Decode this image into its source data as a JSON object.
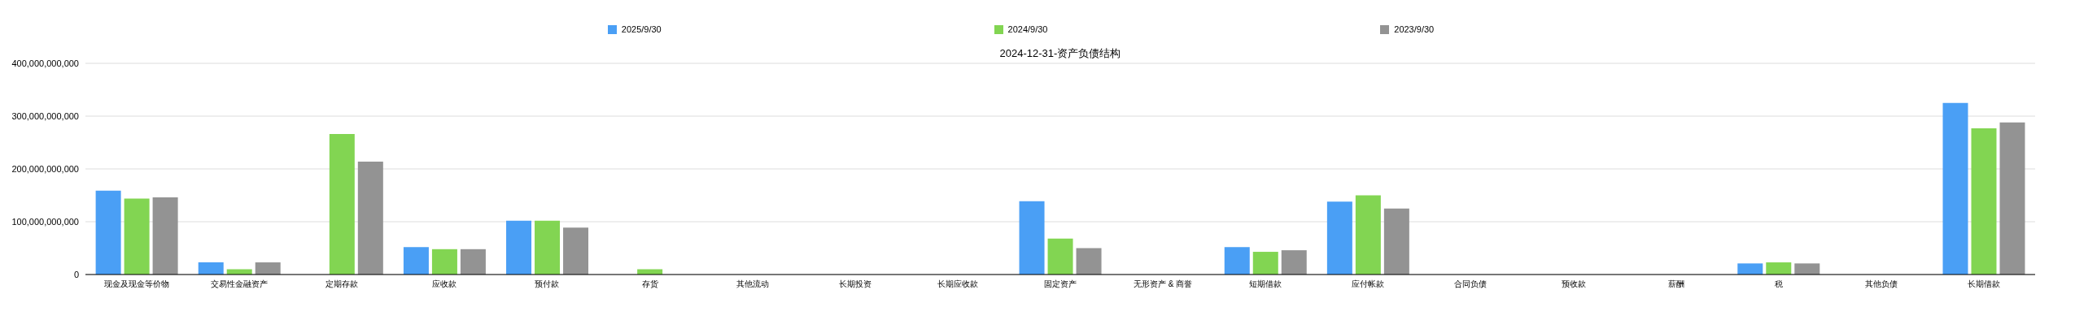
{
  "chart_data": {
    "type": "bar",
    "title": "2024-12-31-资产负债结构",
    "categories": [
      "现金及现金等价物",
      "交易性金融资产",
      "定期存款",
      "应收款",
      "预付款",
      "存货",
      "其他流动",
      "长期投资",
      "长期应收款",
      "固定资产",
      "无形资产 & 商誉",
      "短期借款",
      "应付帐款",
      "合同负债",
      "预收款",
      "薪酬",
      "税",
      "其他负债",
      "长期借款"
    ],
    "series": [
      {
        "name": "2025/9/30",
        "color": "#4a9ff5",
        "values": [
          159000000000,
          23000000000,
          0,
          52000000000,
          102000000000,
          0,
          0,
          0,
          0,
          139000000000,
          0,
          52000000000,
          138000000000,
          0,
          0,
          0,
          21000000000,
          0,
          325000000000
        ]
      },
      {
        "name": "2024/9/30",
        "color": "#82d552",
        "values": [
          144000000000,
          10000000000,
          266000000000,
          48000000000,
          102000000000,
          10000000000,
          0,
          0,
          0,
          68000000000,
          0,
          43000000000,
          150000000000,
          0,
          0,
          0,
          23000000000,
          0,
          277000000000
        ]
      },
      {
        "name": "2023/9/30",
        "color": "#939393",
        "values": [
          146000000000,
          23000000000,
          214000000000,
          48000000000,
          89000000000,
          0,
          0,
          0,
          0,
          50000000000,
          0,
          46000000000,
          125000000000,
          0,
          0,
          0,
          21000000000,
          0,
          288000000000
        ]
      }
    ],
    "ylim": [
      0,
      400000000000
    ],
    "yticks": [
      0,
      {
        "value": 100000000000,
        "label": "100,000,000,000"
      },
      {
        "value": 200000000000,
        "label": "200,000,000,000"
      },
      {
        "value": 300000000000,
        "label": "300,000,000,000"
      },
      {
        "value": 400000000000,
        "label": "400,000,000,000"
      }
    ],
    "grid": "y",
    "legend": "top"
  }
}
